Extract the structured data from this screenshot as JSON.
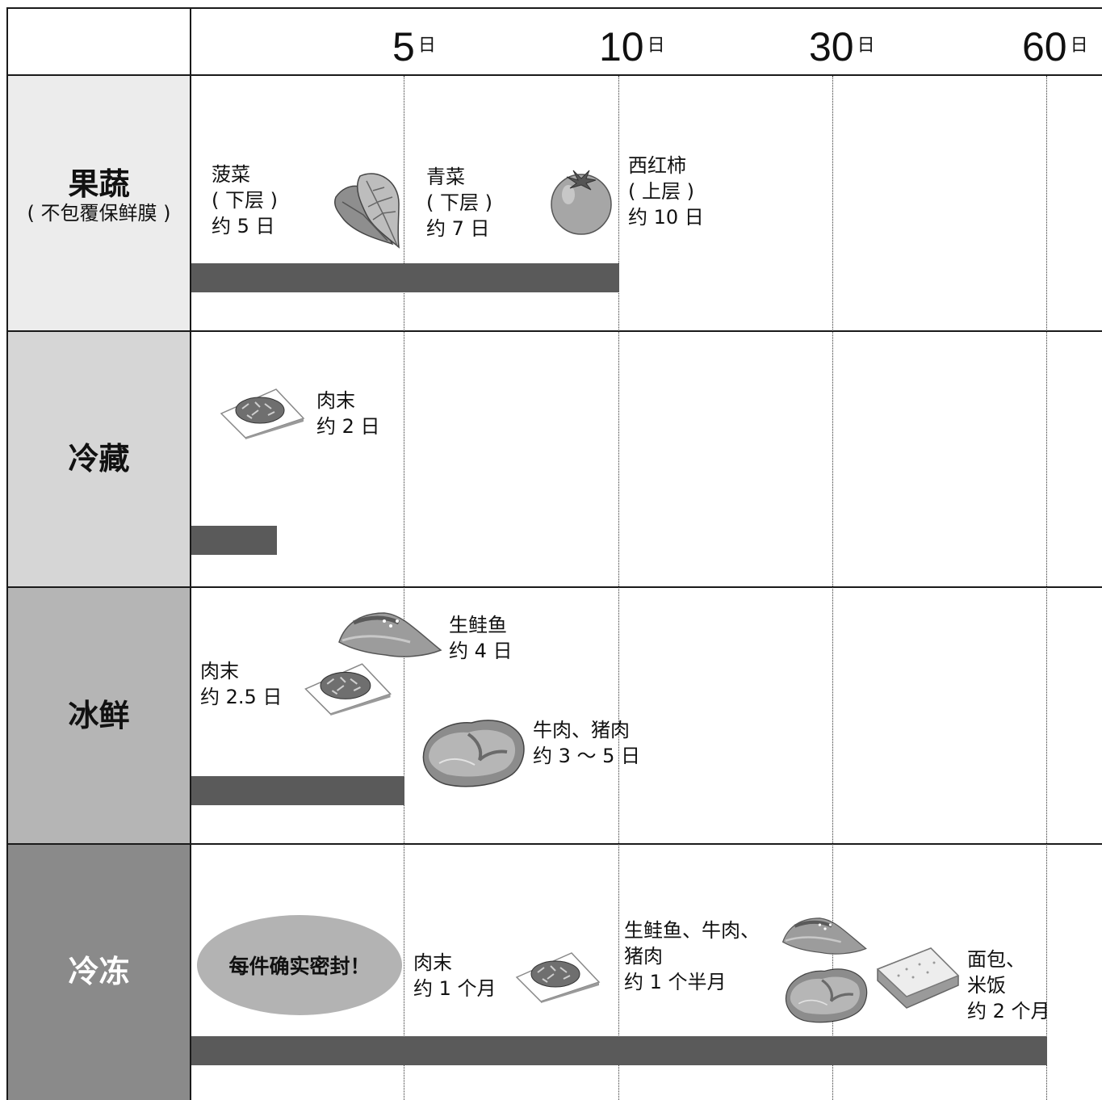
{
  "axis": {
    "unit": "日",
    "ticks": [
      {
        "value": "5",
        "unit": "日"
      },
      {
        "value": "10",
        "unit": "日"
      },
      {
        "value": "30",
        "unit": "日"
      },
      {
        "value": "60",
        "unit": "日"
      }
    ]
  },
  "rows": [
    {
      "title": "果蔬",
      "subtitle": "( 不包覆保鲜膜 )",
      "bar_days": 10,
      "bg": "#ececec",
      "title_color": "#111111"
    },
    {
      "title": "冷藏",
      "subtitle": "",
      "bar_days": 2,
      "bg": "#d6d6d6",
      "title_color": "#111111"
    },
    {
      "title": "冰鲜",
      "subtitle": "",
      "bar_days": 5,
      "bg": "#b5b5b5",
      "title_color": "#111111"
    },
    {
      "title": "冷冻",
      "subtitle": "",
      "bar_days": 60,
      "bg": "#8a8a8a",
      "title_color": "#ffffff"
    }
  ],
  "items": {
    "spinach": [
      "菠菜",
      "( 下层 )",
      "约 5 日"
    ],
    "greens": [
      "青菜",
      "( 下层 )",
      "约 7 日"
    ],
    "tomato": [
      "西红柿",
      "( 上层 )",
      "约 10 日"
    ],
    "chill_mince": [
      "肉末",
      "约 2 日"
    ],
    "fresh_mince": [
      "肉末",
      "约 2.5 日"
    ],
    "fresh_salmon": [
      "生鲑鱼",
      "约 4 日"
    ],
    "fresh_meat": [
      "牛肉、猪肉",
      "约 3 ～ 5 日"
    ],
    "frozen_mince": [
      "肉末",
      "约 1 个月"
    ],
    "frozen_fish_meat": [
      "生鲑鱼、牛肉、",
      "猪肉",
      "约 1 个半月"
    ],
    "frozen_bread": [
      "面包、",
      "米饭",
      "约 2 个月"
    ]
  },
  "callout": "每件确实密封！",
  "colors": {
    "bar": "#5a5a5a",
    "grid": "#1a1a1a",
    "oval": "#b3b3b3"
  },
  "icons": [
    "spinach-icon",
    "tomato-icon",
    "minced-meat-plate-icon",
    "salmon-icon",
    "steak-icon",
    "bread-icon"
  ]
}
